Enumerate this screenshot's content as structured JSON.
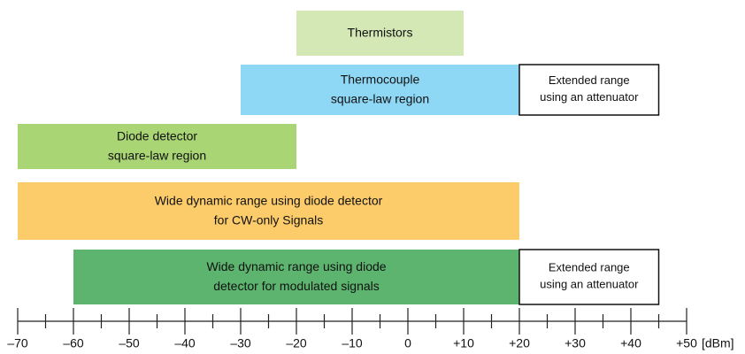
{
  "chart_data": {
    "type": "range",
    "xlabel": "[dBm]",
    "xlim": [
      -70,
      50
    ],
    "xticks": [
      {
        "value": -70,
        "label": "–70"
      },
      {
        "value": -60,
        "label": "–60"
      },
      {
        "value": -50,
        "label": "–50"
      },
      {
        "value": -40,
        "label": "–40"
      },
      {
        "value": -30,
        "label": "–30"
      },
      {
        "value": -20,
        "label": "–20"
      },
      {
        "value": -10,
        "label": "–10"
      },
      0,
      {
        "value": 10,
        "label": "+10"
      },
      {
        "value": 20,
        "label": "+20"
      },
      {
        "value": 30,
        "label": "+30"
      },
      {
        "value": 40,
        "label": "+40"
      },
      {
        "value": 50,
        "label": "+50"
      }
    ],
    "xminorticks": [
      -65,
      -55,
      -45,
      -35,
      -25,
      -15,
      -5,
      5,
      15,
      25,
      35,
      45
    ],
    "bars": [
      {
        "label": [
          "Thermistors"
        ],
        "start": -20,
        "end": 10,
        "color": "#d3e8b5"
      },
      {
        "label": [
          "Thermocouple",
          "square-law region"
        ],
        "start": -30,
        "end": 20,
        "color": "#8ed8f5"
      },
      {
        "label": [
          "Extended range",
          "using an attenuator"
        ],
        "start": 20,
        "end": 45,
        "color": "#ffffff",
        "outline": "#111111"
      },
      {
        "label": [
          "Diode detector",
          "square-law region"
        ],
        "start": -70,
        "end": -20,
        "color": "#a9d574"
      },
      {
        "label": [
          "Wide dynamic range using diode detector",
          "for CW-only Signals"
        ],
        "start": -70,
        "end": 20,
        "color": "#fccc6a"
      },
      {
        "label": [
          "Wide dynamic range using diode",
          "detector for modulated signals"
        ],
        "start": -60,
        "end": 20,
        "color": "#5cb46f"
      },
      {
        "label": [
          "Extended range",
          "using an attenuator"
        ],
        "start": 20,
        "end": 45,
        "color": "#ffffff",
        "outline": "#111111"
      }
    ]
  }
}
